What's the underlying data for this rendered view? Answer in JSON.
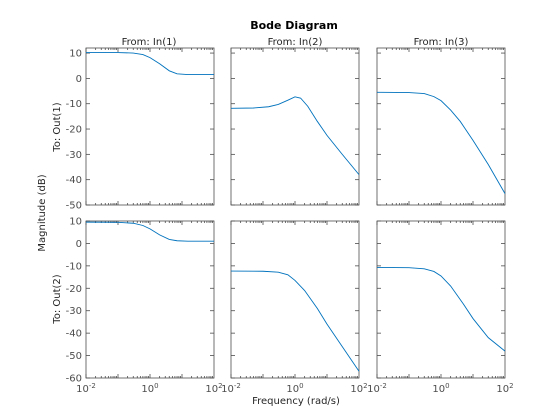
{
  "title": "Bode Diagram",
  "xlabel": "Frequency  (rad/s)",
  "ylabel": "Magnitude (dB)",
  "input_labels": [
    "From: In(1)",
    "From: In(2)",
    "From: In(3)"
  ],
  "output_labels": [
    "To: Out(1)",
    "To: Out(2)"
  ],
  "colors": {
    "line": "#0072bd",
    "axes": "#4d4d4d"
  },
  "chart_data": {
    "type": "line",
    "x_scale": "log",
    "xlim": [
      0.01,
      100
    ],
    "x_ticks": [
      {
        "value": 0.01,
        "base": "10",
        "exp": "-2"
      },
      {
        "value": 1,
        "base": "10",
        "exp": "0"
      },
      {
        "value": 100,
        "base": "10",
        "exp": "2"
      }
    ],
    "rows": [
      {
        "ylim": [
          -50,
          12
        ],
        "y_ticks": [
          10,
          0,
          -10,
          -20,
          -30,
          -40,
          -50
        ]
      },
      {
        "ylim": [
          -60,
          10
        ],
        "y_ticks": [
          10,
          0,
          -10,
          -20,
          -30,
          -40,
          -50,
          -60
        ]
      }
    ],
    "panels": [
      {
        "row": 0,
        "col": 0,
        "x": [
          0.01,
          0.1,
          0.3,
          0.6,
          1,
          2,
          4,
          7,
          15,
          100
        ],
        "y": [
          10.2,
          10.2,
          10.0,
          9.4,
          8.2,
          5.8,
          3.0,
          1.8,
          1.5,
          1.5
        ]
      },
      {
        "row": 0,
        "col": 1,
        "x": [
          0.01,
          0.05,
          0.15,
          0.3,
          0.6,
          1,
          1.5,
          2.5,
          5,
          10,
          30,
          100
        ],
        "y": [
          -11.8,
          -11.7,
          -11.2,
          -10.3,
          -8.6,
          -7.3,
          -7.8,
          -11.0,
          -17.0,
          -22.5,
          -30.0,
          -38.0
        ]
      },
      {
        "row": 0,
        "col": 2,
        "x": [
          0.01,
          0.1,
          0.3,
          0.6,
          1,
          2,
          4,
          10,
          30,
          100
        ],
        "y": [
          -5.5,
          -5.6,
          -6.0,
          -7.2,
          -8.8,
          -12.5,
          -17.0,
          -24.5,
          -34.0,
          -45.5
        ]
      },
      {
        "row": 1,
        "col": 0,
        "x": [
          0.01,
          0.1,
          0.3,
          0.6,
          1,
          2,
          4,
          7,
          15,
          100
        ],
        "y": [
          9.5,
          9.4,
          9.0,
          8.0,
          6.5,
          3.8,
          1.8,
          1.2,
          1.0,
          1.0
        ]
      },
      {
        "row": 1,
        "col": 1,
        "x": [
          0.01,
          0.1,
          0.3,
          0.6,
          1,
          2,
          5,
          10,
          30,
          100
        ],
        "y": [
          -12.3,
          -12.4,
          -12.8,
          -14.0,
          -16.5,
          -21.0,
          -29.0,
          -36.0,
          -46.0,
          -57.0
        ]
      },
      {
        "row": 1,
        "col": 2,
        "x": [
          0.01,
          0.1,
          0.3,
          0.6,
          1,
          2,
          5,
          10,
          30,
          100
        ],
        "y": [
          -10.7,
          -10.8,
          -11.3,
          -12.5,
          -14.5,
          -19.0,
          -27.0,
          -33.5,
          -42.0,
          -48.0
        ]
      }
    ]
  }
}
